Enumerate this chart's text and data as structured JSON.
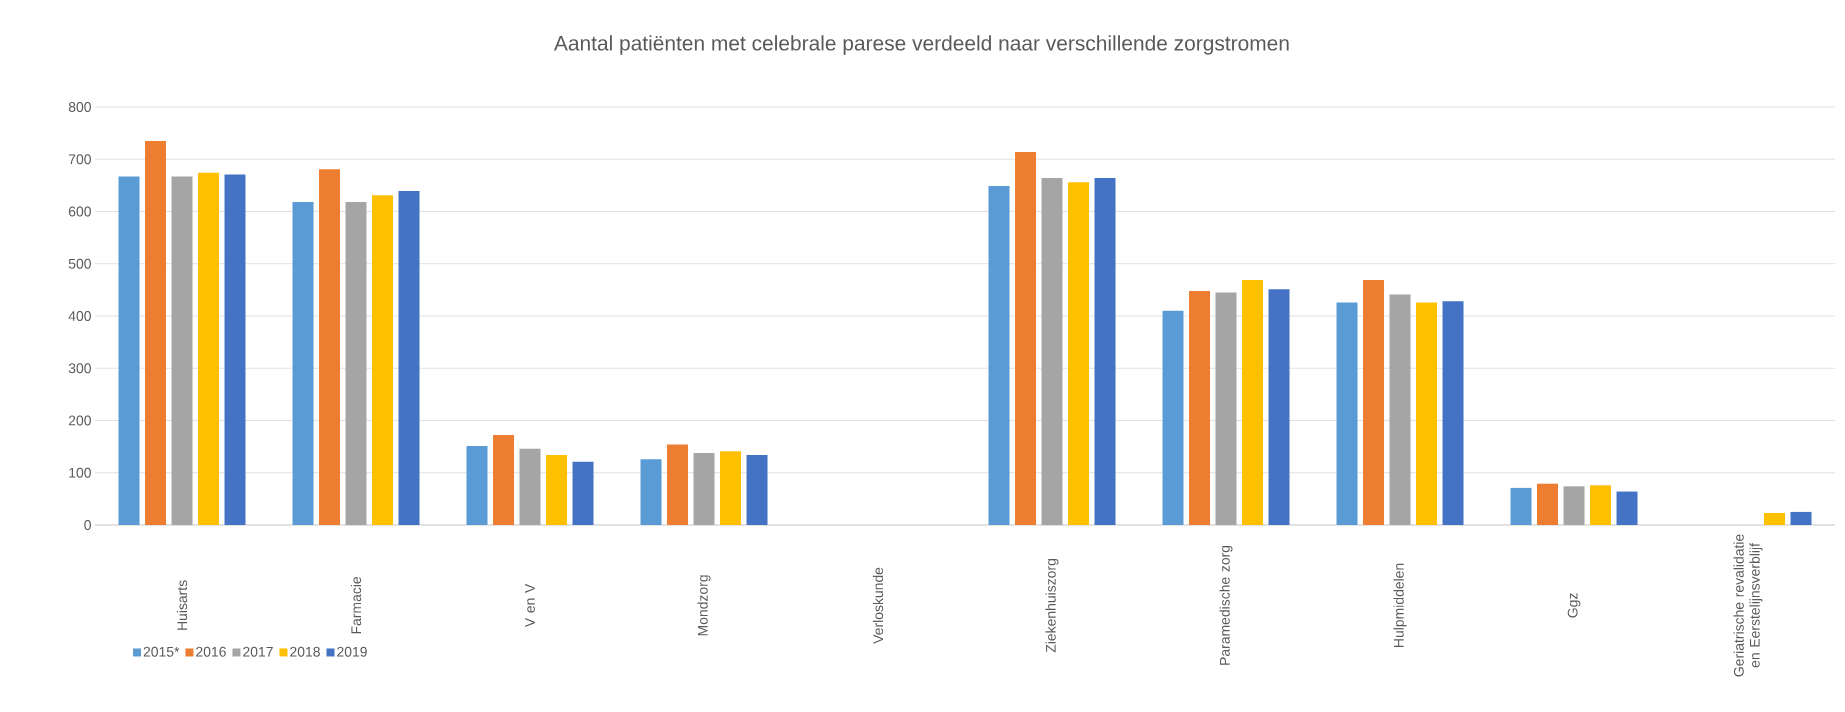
{
  "chart_data": {
    "type": "bar",
    "title": "Aantal patiënten met celebrale parese verdeeld naar verschillende zorgstromen",
    "categories": [
      "Huisarts",
      "Farmacie",
      "V en V",
      "Mondzorg",
      "Verloskunde",
      "Ziekenhuiszorg",
      "Paramedische zorg",
      "Hulpmiddelen",
      "Ggz",
      "Geriatrische revalidatie en Eerstelijnsverblijf"
    ],
    "series": [
      {
        "name": "2015*",
        "color": "#5b9bd5",
        "values": [
          667,
          618,
          151,
          126,
          null,
          649,
          410,
          426,
          71,
          null
        ]
      },
      {
        "name": "2016",
        "color": "#ed7d31",
        "values": [
          735,
          681,
          172,
          154,
          null,
          714,
          448,
          469,
          79,
          null
        ]
      },
      {
        "name": "2017",
        "color": "#a5a5a5",
        "values": [
          667,
          618,
          146,
          138,
          null,
          664,
          445,
          441,
          74,
          null
        ]
      },
      {
        "name": "2018",
        "color": "#ffc000",
        "values": [
          674,
          631,
          134,
          141,
          null,
          656,
          469,
          426,
          76,
          23
        ]
      },
      {
        "name": "2019",
        "color": "#4472c4",
        "values": [
          671,
          639,
          121,
          134,
          null,
          664,
          451,
          428,
          64,
          25
        ]
      }
    ],
    "ylim": [
      0,
      800
    ],
    "yticks": [
      0,
      100,
      200,
      300,
      400,
      500,
      600,
      700,
      800
    ],
    "grid": "y",
    "legend": "bottom left"
  }
}
